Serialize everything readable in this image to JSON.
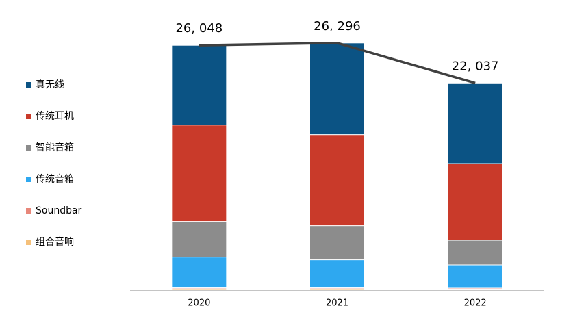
{
  "chart_data": {
    "type": "stacked-bar",
    "categories": [
      "2020",
      "2021",
      "2022"
    ],
    "series": [
      {
        "name": "真无线",
        "color": "#0b5384",
        "values": [
          8476,
          9743,
          8571
        ]
      },
      {
        "name": "传统耳机",
        "color": "#c93a2a",
        "values": [
          10262,
          9680,
          8151
        ]
      },
      {
        "name": "智能音箱",
        "color": "#8c8c8c",
        "values": [
          3785,
          3639,
          2620
        ]
      },
      {
        "name": "传统音箱",
        "color": "#2ea8f0",
        "values": [
          3275,
          2984,
          2475
        ]
      },
      {
        "name": "Soundbar",
        "color": "#e8877a",
        "values": [
          100,
          100,
          100
        ]
      },
      {
        "name": "组合音响",
        "color": "#f5c07a",
        "values": [
          150,
          150,
          120
        ]
      }
    ],
    "totals": {
      "color": "#404040",
      "values": [
        26048,
        26296,
        22037
      ],
      "value_labels": [
        "26, 048",
        "26, 296",
        "22, 037"
      ]
    },
    "ylim": [
      0,
      26500
    ]
  }
}
